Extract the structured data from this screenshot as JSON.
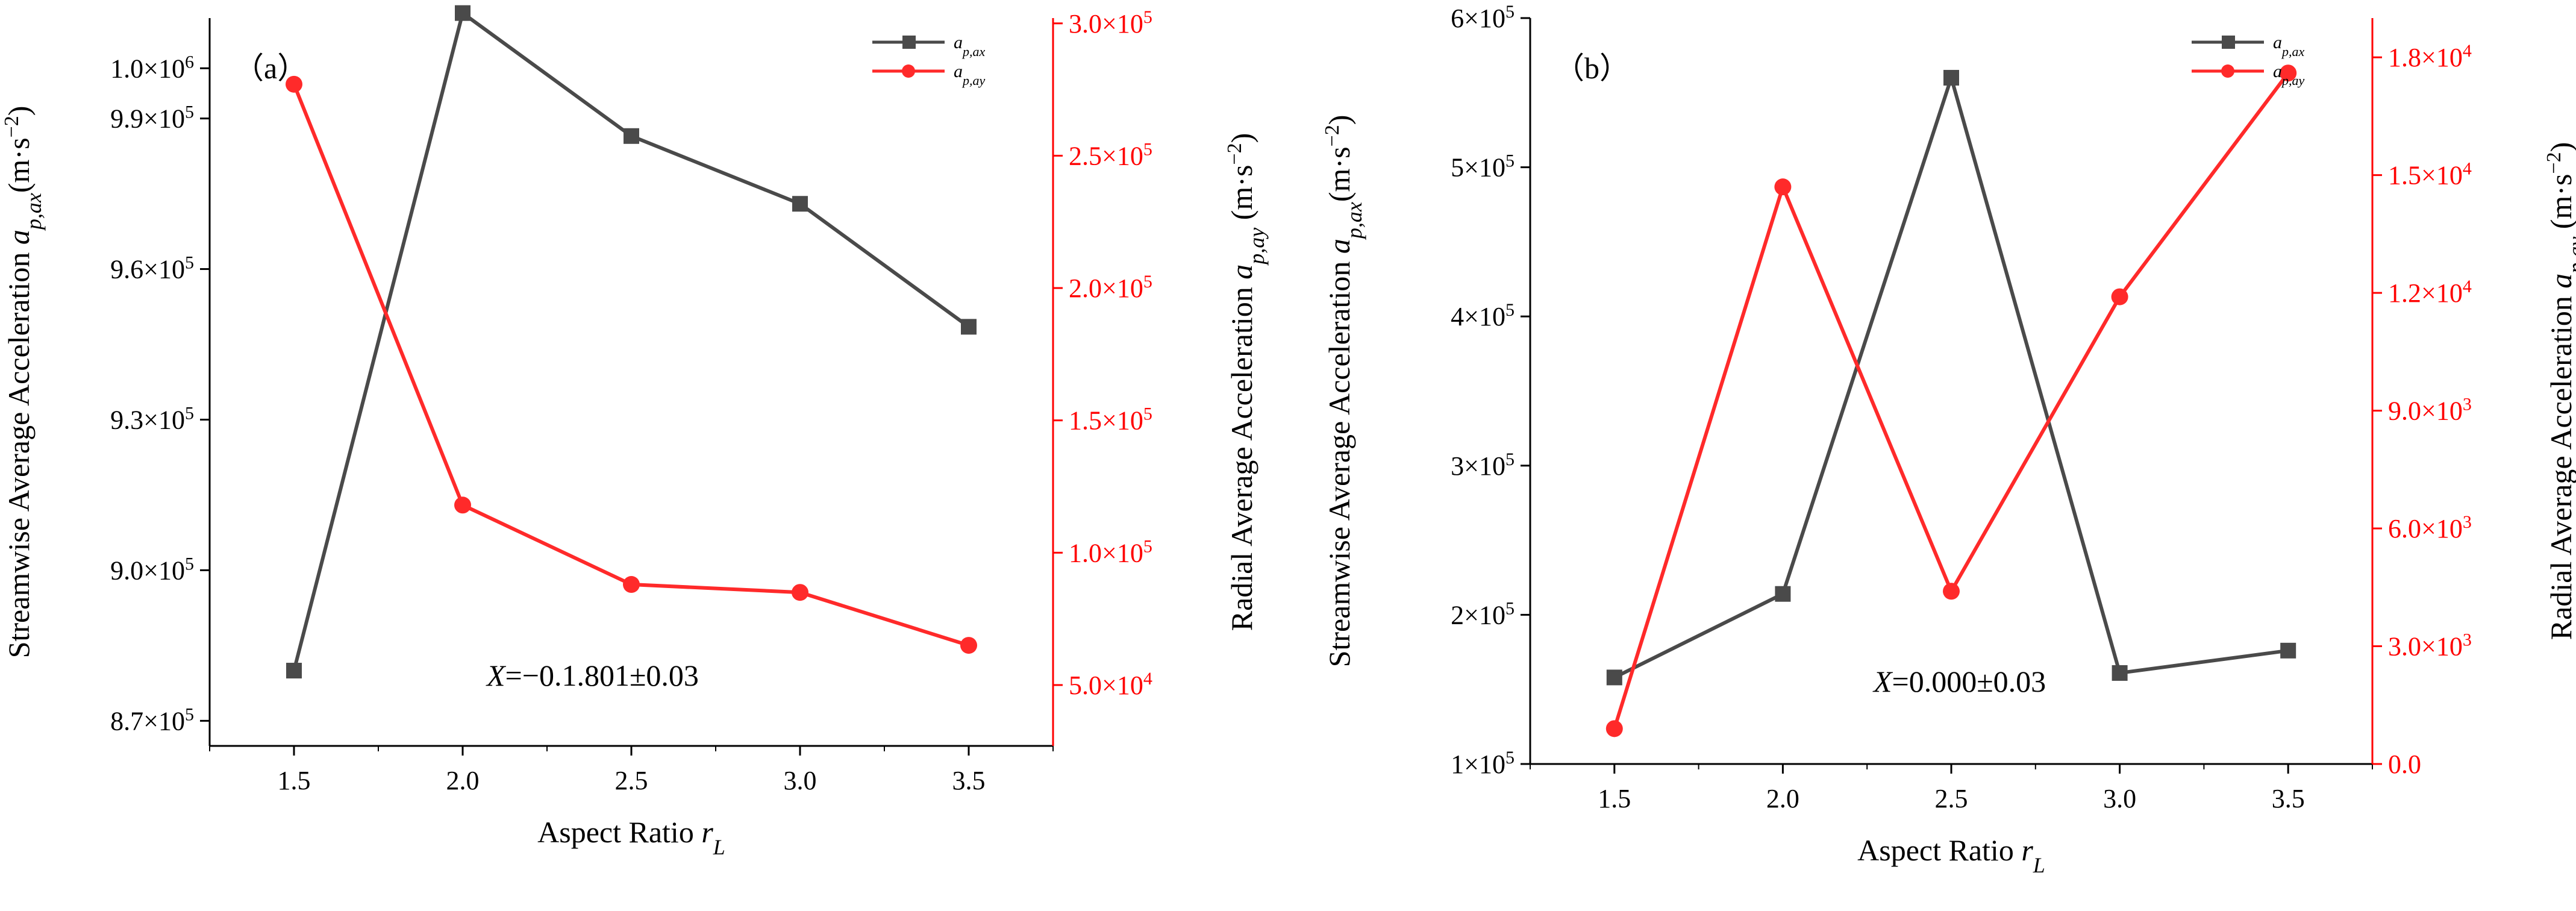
{
  "colors": {
    "series1": "#4a4a4a",
    "series2": "#ff2a2a",
    "axis_left": "#000000",
    "axis_right": "#ff0000"
  },
  "chart_data": [
    {
      "type": "line",
      "panel_label": "（a）",
      "annotation": "X=−0.1.801±0.03",
      "x": [
        1.5,
        2.0,
        2.5,
        3.0,
        3.5
      ],
      "x_ticks": [
        1.5,
        2.0,
        2.5,
        3.0,
        3.5
      ],
      "xlim": [
        1.25,
        3.75
      ],
      "xlabel": "Aspect Ratio r_L",
      "y_left": {
        "label": "Streamwise Average Acceleration a_p,ax (m·s⁻²)",
        "ylim": [
          865000,
          1010000
        ],
        "ticks": [
          {
            "v": 870000,
            "mant": "8.7×10",
            "exp": "5"
          },
          {
            "v": 900000,
            "mant": "9.0×10",
            "exp": "5"
          },
          {
            "v": 930000,
            "mant": "9.3×10",
            "exp": "5"
          },
          {
            "v": 960000,
            "mant": "9.6×10",
            "exp": "5"
          },
          {
            "v": 990000,
            "mant": "9.9×10",
            "exp": "5"
          },
          {
            "v": 1000000,
            "mant": "1.0×10",
            "exp": "6"
          }
        ]
      },
      "y_right": {
        "label": "Radial Average Acceleration a_p,ay (m·s⁻²)",
        "ylim": [
          27000,
          302000
        ],
        "ticks": [
          {
            "v": 50000,
            "mant": "5.0×10",
            "exp": "4"
          },
          {
            "v": 100000,
            "mant": "1.0×10",
            "exp": "5"
          },
          {
            "v": 150000,
            "mant": "1.5×10",
            "exp": "5"
          },
          {
            "v": 200000,
            "mant": "2.0×10",
            "exp": "5"
          },
          {
            "v": 250000,
            "mant": "2.5×10",
            "exp": "5"
          },
          {
            "v": 300000,
            "mant": "3.0×10",
            "exp": "5"
          }
        ]
      },
      "series": [
        {
          "name": "a_p,ax",
          "axis": "left",
          "color": "#4a4a4a",
          "marker": "square",
          "values": [
            880000,
            1011000,
            986500,
            973000,
            948500
          ]
        },
        {
          "name": "a_p,ay",
          "axis": "right",
          "color": "#ff2a2a",
          "marker": "circle",
          "values": [
            277000,
            118000,
            88000,
            85000,
            65000
          ]
        }
      ],
      "legend": "top-right"
    },
    {
      "type": "line",
      "panel_label": "（b）",
      "annotation": "X=0.000±0.03",
      "x": [
        1.5,
        2.0,
        2.5,
        3.0,
        3.5
      ],
      "x_ticks": [
        1.5,
        2.0,
        2.5,
        3.0,
        3.5
      ],
      "xlim": [
        1.25,
        3.75
      ],
      "xlabel": "Aspect Ratio r_L",
      "y_left": {
        "label": "Streamwise Average Acceleration a_p,ax (m·s⁻²)",
        "ylim": [
          100000,
          600000
        ],
        "ticks": [
          {
            "v": 100000,
            "mant": "1×10",
            "exp": "5"
          },
          {
            "v": 200000,
            "mant": "2×10",
            "exp": "5"
          },
          {
            "v": 300000,
            "mant": "3×10",
            "exp": "5"
          },
          {
            "v": 400000,
            "mant": "4×10",
            "exp": "5"
          },
          {
            "v": 500000,
            "mant": "5×10",
            "exp": "5"
          },
          {
            "v": 600000,
            "mant": "6×10",
            "exp": "5"
          }
        ]
      },
      "y_right": {
        "label": "Radial Average Acceleration a_p,ay (m·s⁻²)",
        "ylim": [
          0,
          19000
        ],
        "ticks": [
          {
            "v": 0,
            "mant": "0.0",
            "exp": ""
          },
          {
            "v": 3000,
            "mant": "3.0×10",
            "exp": "3"
          },
          {
            "v": 6000,
            "mant": "6.0×10",
            "exp": "3"
          },
          {
            "v": 9000,
            "mant": "9.0×10",
            "exp": "3"
          },
          {
            "v": 12000,
            "mant": "1.2×10",
            "exp": "4"
          },
          {
            "v": 15000,
            "mant": "1.5×10",
            "exp": "4"
          },
          {
            "v": 18000,
            "mant": "1.8×10",
            "exp": "4"
          }
        ]
      },
      "series": [
        {
          "name": "a_p,ax",
          "axis": "left",
          "color": "#4a4a4a",
          "marker": "square",
          "values": [
            158000,
            214000,
            560000,
            161000,
            176000
          ]
        },
        {
          "name": "a_p,ay",
          "axis": "right",
          "color": "#ff2a2a",
          "marker": "circle",
          "values": [
            900,
            14700,
            4400,
            11900,
            17600
          ]
        }
      ],
      "legend": "top-right"
    }
  ]
}
